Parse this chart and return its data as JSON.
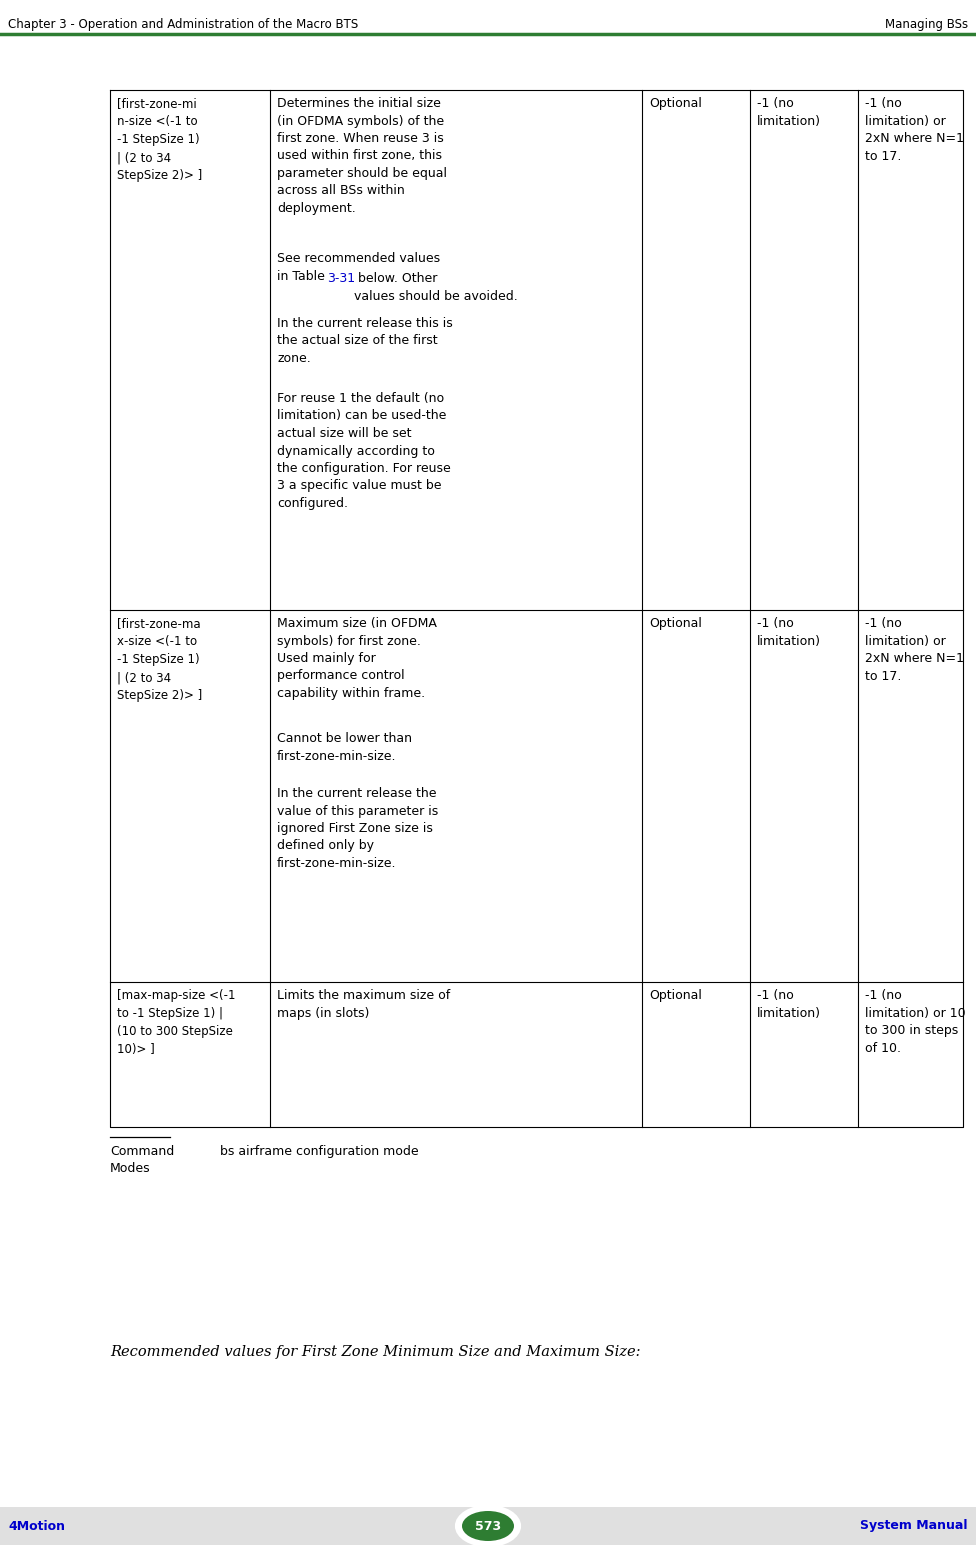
{
  "header_left": "Chapter 3 - Operation and Administration of the Macro BTS",
  "header_right": "Managing BSs",
  "header_line_color": "#2e7d32",
  "footer_bg_color": "#e0e0e0",
  "footer_page": "573",
  "footer_page_bg": "#2e7d32",
  "footer_left": "4Motion",
  "footer_right": "System Manual",
  "footer_text_color": "#0000cc",
  "bottom_text": "Recommended values for First Zone Minimum Size and Maximum Size:",
  "col0_row0": "[first-zone-mi\nn-size <(-1 to\n-1 StepSize 1)\n| (2 to 34\nStepSize 2)> ]",
  "col0_row1": "[first-zone-ma\nx-size <(-1 to\n-1 StepSize 1)\n| (2 to 34\nStepSize 2)> ]",
  "col0_row2": "[max-map-size <(-1\nto -1 StepSize 1) |\n(10 to 300 StepSize\n10)> ]",
  "col1_row0_p0": "Determines the initial size\n(in OFDMA symbols) of the\nfirst zone. When reuse 3 is\nused within first zone, this\nparameter should be equal\nacross all BSs within\ndeployment.",
  "col1_row0_p1a": "See recommended values\nin Table ",
  "col1_row0_p1b": "3-31",
  "col1_row0_p1c": " below. Other\nvalues should be avoided.",
  "col1_row0_p2": "In the current release this is\nthe actual size of the first\nzone.",
  "col1_row0_p3": "For reuse 1 the default (no\nlimitation) can be used-the\nactual size will be set\ndynamically according to\nthe configuration. For reuse\n3 a specific value must be\nconfigured.",
  "col1_row1_p0": "Maximum size (in OFDMA\nsymbols) for first zone.\nUsed mainly for\nperformance control\ncapability within frame.",
  "col1_row1_p1": "Cannot be lower than\nfirst-zone-min-size.",
  "col1_row1_p2": "In the current release the\nvalue of this parameter is\nignored First Zone size is\ndefined only by\nfirst-zone-min-size.",
  "col1_row2_p0": "Limits the maximum size of\nmaps (in slots)",
  "col2_all": "Optional",
  "col3_r01": "-1 (no\nlimitation)",
  "col4_r01": "-1 (no\nlimitation) or\n2xN where N=1\nto 17.",
  "col3_r2": "-1 (no\nlimitation)",
  "col4_r2": "-1 (no\nlimitation) or 10\nto 300 in steps\nof 10.",
  "cmd_label": "Command\nModes",
  "cmd_value": "bs airframe configuration mode",
  "link_color": "#0000cc"
}
